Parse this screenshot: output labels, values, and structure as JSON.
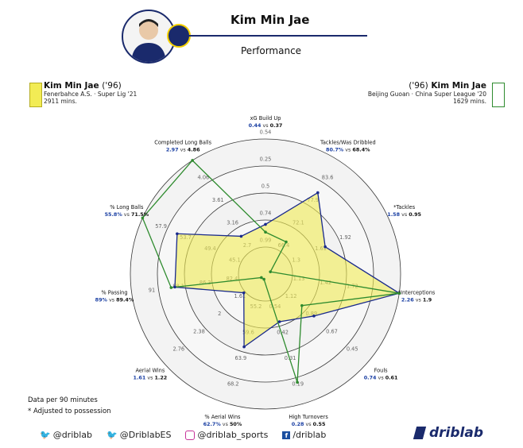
{
  "header": {
    "title": "Kim Min Jae",
    "subtitle": "Performance"
  },
  "legend": {
    "left": {
      "name": "Kim Min Jae",
      "year": "('96)",
      "team": "Fenerbahce A.S. · Super Lig '21",
      "minutes": "2911 mins.",
      "color": "#f2ec55"
    },
    "right": {
      "name": "Kim Min Jae",
      "year": "('96)",
      "team": "Beijing Guoan · China Super League '20",
      "minutes": "1629 mins.",
      "color": "#2e8b2e"
    }
  },
  "footer": {
    "note1": "Data per 90 minutes",
    "note2": "* Adjusted to possession",
    "socials": [
      "@driblab",
      "@DriblabES",
      "@driblab_sports",
      "/driblab"
    ],
    "brand": "driblab"
  },
  "colors": {
    "primary": "#1a2a6c",
    "value_a": "#1a3fa3",
    "series_a": "#f2ec55",
    "series_b": "#2e8b2e"
  },
  "chart_data": {
    "type": "radar",
    "title": "Performance",
    "series": [
      {
        "name": "Kim Min Jae ('96) Fenerbahce A.S. · Super Lig '21",
        "color": "#f2ec55"
      },
      {
        "name": "Kim Min Jae ('96) Beijing Guoan · China Super League '20",
        "color": "#2e8b2e"
      }
    ],
    "metrics": [
      {
        "name": "xG Build Up",
        "a": 0.44,
        "b": 0.37,
        "a_label": "0.44",
        "b_label": "0.37",
        "ticks": [
          "0.99",
          "0.74",
          "0.5",
          "0.25",
          "0.54"
        ]
      },
      {
        "name": "Tackles/Was Dribbled",
        "a": 80.7,
        "b": 68.4,
        "a_label": "80.7%",
        "b_label": "68.4%",
        "ticks": [
          "66.4",
          "72.1",
          "77.9",
          "83.6"
        ]
      },
      {
        "name": "*Tackles",
        "a": 1.58,
        "b": 0.95,
        "a_label": "1.58",
        "b_label": "0.95",
        "ticks": [
          "1.3",
          "1.61",
          "1.92"
        ]
      },
      {
        "name": "*Interceptions",
        "a": 2.26,
        "b": 1.9,
        "a_label": "2.26",
        "b_label": "1.9",
        "ticks": [
          "1.13",
          "1.42",
          "1.72"
        ]
      },
      {
        "name": "Fouls",
        "a": 0.74,
        "b": 0.61,
        "a_label": "0.74",
        "b_label": "0.61",
        "ticks": [
          "1.12",
          "0.89",
          "0.67",
          "0.45"
        ]
      },
      {
        "name": "High Turnovers",
        "a": 0.28,
        "b": 0.55,
        "a_label": "0.28",
        "b_label": "0.55",
        "ticks": [
          "0.54",
          "0.42",
          "0.31",
          "0.19"
        ]
      },
      {
        "name": "% Aerial Wins",
        "a": 62.7,
        "b": 50,
        "a_label": "62.7%",
        "b_label": "50%",
        "ticks": [
          "55.2",
          "59.6",
          "63.9",
          "68.2"
        ]
      },
      {
        "name": "Aerial Wins",
        "a": 1.61,
        "b": 1.22,
        "a_label": "1.61",
        "b_label": "1.22",
        "ticks": [
          "1.61",
          "2",
          "2.38",
          "2.76"
        ]
      },
      {
        "name": "% Passing",
        "a": 89,
        "b": 89.4,
        "a_label": "89%",
        "b_label": "89.4%",
        "ticks": [
          "82.4",
          "86.3",
          "88.1",
          "91"
        ]
      },
      {
        "name": "% Long Balls",
        "a": 55.8,
        "b": 71.5,
        "a_label": "55.8%",
        "b_label": "71.5%",
        "ticks": [
          "45.1",
          "49.4",
          "53.7",
          "57.9"
        ]
      },
      {
        "name": "Completed Long Balls",
        "a": 2.97,
        "b": 4.86,
        "a_label": "2.97",
        "b_label": "4.86",
        "ticks": [
          "2.7",
          "3.16",
          "3.61",
          "4.06"
        ]
      }
    ],
    "vs_word": "vs",
    "grid": true
  }
}
